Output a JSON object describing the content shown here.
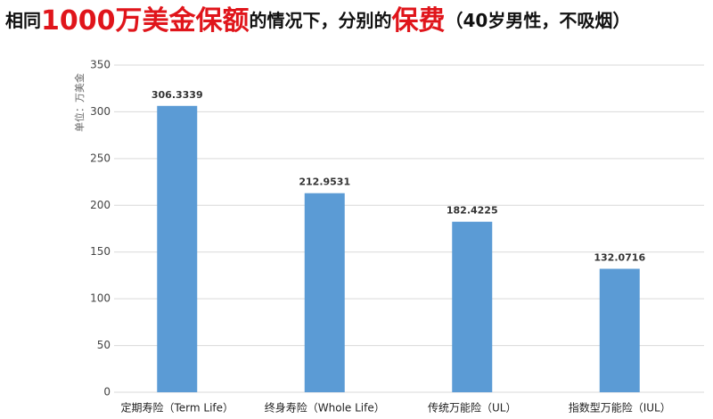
{
  "chart_data": {
    "type": "bar",
    "title_parts": [
      {
        "text": "相同",
        "color": "#111111",
        "size": 20
      },
      {
        "text": "1000万美金保额",
        "color": "#e0151b",
        "size": 30
      },
      {
        "text": "的情况下，分别的",
        "color": "#111111",
        "size": 20
      },
      {
        "text": "保费",
        "color": "#e0151b",
        "size": 30
      },
      {
        "text": "（40岁男性，不吸烟）",
        "color": "#111111",
        "size": 20
      }
    ],
    "y_label": "单位：万美金",
    "categories": [
      "定期寿险（Term Life）",
      "终身寿险（Whole Life）",
      "传统万能险（UL）",
      "指数型万能险（IUL）"
    ],
    "values": [
      306.3339,
      212.9531,
      182.4225,
      132.0716
    ],
    "color": "#5b9bd5",
    "ylim": [
      0,
      350
    ],
    "yticks": [
      0,
      50,
      100,
      150,
      200,
      250,
      300,
      350
    ],
    "grid": true
  }
}
